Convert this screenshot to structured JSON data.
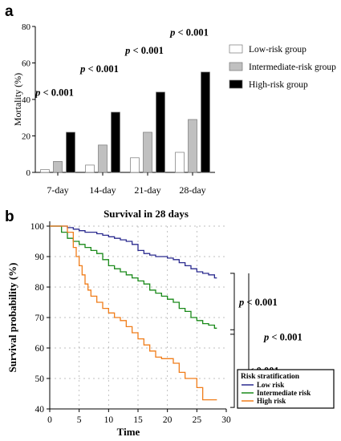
{
  "panel_a_label": "a",
  "panel_b_label": "b",
  "chart_data": [
    {
      "type": "bar",
      "title": "",
      "xlabel": "",
      "ylabel": "Mortality (%)",
      "ylim": [
        0,
        80
      ],
      "yticks": [
        "0",
        "20",
        "40",
        "60",
        "80"
      ],
      "categories": [
        "7-day",
        "14-day",
        "21-day",
        "28-day"
      ],
      "series": [
        {
          "name": "Low-risk group",
          "color": "#ffffff",
          "values": [
            1.5,
            4,
            8,
            11
          ]
        },
        {
          "name": "Intermediate-risk group",
          "color": "#c0c0c0",
          "values": [
            6,
            15,
            22,
            29
          ]
        },
        {
          "name": "High-risk group",
          "color": "#000000",
          "values": [
            22,
            33,
            44,
            55
          ]
        }
      ],
      "annotations": [
        {
          "category": "7-day",
          "text": "p < 0.001",
          "y": 42
        },
        {
          "category": "14-day",
          "text": "p < 0.001",
          "y": 55
        },
        {
          "category": "21-day",
          "text": "p < 0.001",
          "y": 65
        },
        {
          "category": "28-day",
          "text": "p < 0.001",
          "y": 75
        }
      ],
      "legend_position": "top-right"
    },
    {
      "type": "line",
      "title": "Survival in 28 days",
      "xlabel": "Time",
      "ylabel": "Survival probability (%)",
      "xlim": [
        0,
        30
      ],
      "ylim": [
        40,
        100
      ],
      "xticks": [
        "0",
        "5",
        "10",
        "15",
        "20",
        "25",
        "30"
      ],
      "yticks": [
        "40",
        "50",
        "60",
        "70",
        "80",
        "90",
        "100"
      ],
      "grid": true,
      "step": true,
      "series": [
        {
          "name": "Low risk",
          "color": "#2b2b8f",
          "x": [
            0,
            3,
            4,
            5,
            6,
            8,
            9,
            10,
            11,
            12,
            13,
            14,
            15,
            16,
            17,
            18,
            20,
            21,
            22,
            23,
            24,
            25,
            26,
            27,
            28
          ],
          "y": [
            100,
            99.5,
            99,
            98.5,
            98,
            97.5,
            97,
            96.5,
            96,
            95.5,
            95,
            94,
            92,
            91,
            90.5,
            90,
            89.5,
            89,
            88,
            87,
            86,
            85,
            84.5,
            84,
            83
          ]
        },
        {
          "name": "Intermediate risk",
          "color": "#1a8a1a",
          "x": [
            0,
            2,
            3,
            4,
            5,
            6,
            7,
            8,
            9,
            10,
            11,
            12,
            13,
            14,
            15,
            16,
            17,
            18,
            19,
            20,
            21,
            22,
            23,
            24,
            25,
            26,
            27,
            28
          ],
          "y": [
            100,
            98,
            96,
            95,
            94,
            93,
            92,
            91,
            89,
            87,
            86,
            85,
            84,
            83,
            82,
            81,
            79,
            78,
            77,
            76,
            75,
            73,
            72,
            70,
            69,
            68,
            67.5,
            66.5
          ]
        },
        {
          "name": "High risk",
          "color": "#f07d1a",
          "x": [
            0,
            3,
            4,
            4.5,
            5,
            5.5,
            6,
            6.5,
            7,
            8,
            9,
            10,
            11,
            12,
            13,
            14,
            15,
            16,
            17,
            18,
            19,
            20,
            21,
            22,
            23,
            24,
            25,
            26,
            27,
            28
          ],
          "y": [
            100,
            98,
            93,
            90,
            87,
            84,
            81,
            79,
            77,
            75,
            73,
            71.5,
            70,
            69,
            67,
            65,
            63,
            61,
            59,
            57,
            56.5,
            56.5,
            55,
            52,
            50,
            50,
            47,
            43,
            43,
            43
          ]
        }
      ],
      "annotations": [
        {
          "text": "p < 0.001",
          "between": [
            "Low risk",
            "Intermediate risk"
          ]
        },
        {
          "text": "p < 0.001",
          "between": [
            "Low risk",
            "High risk"
          ]
        },
        {
          "text": "p < 0.001",
          "between": [
            "Intermediate risk",
            "High risk"
          ]
        }
      ],
      "legend_title": "Risk stratification",
      "legend_position": "bottom-right"
    }
  ]
}
